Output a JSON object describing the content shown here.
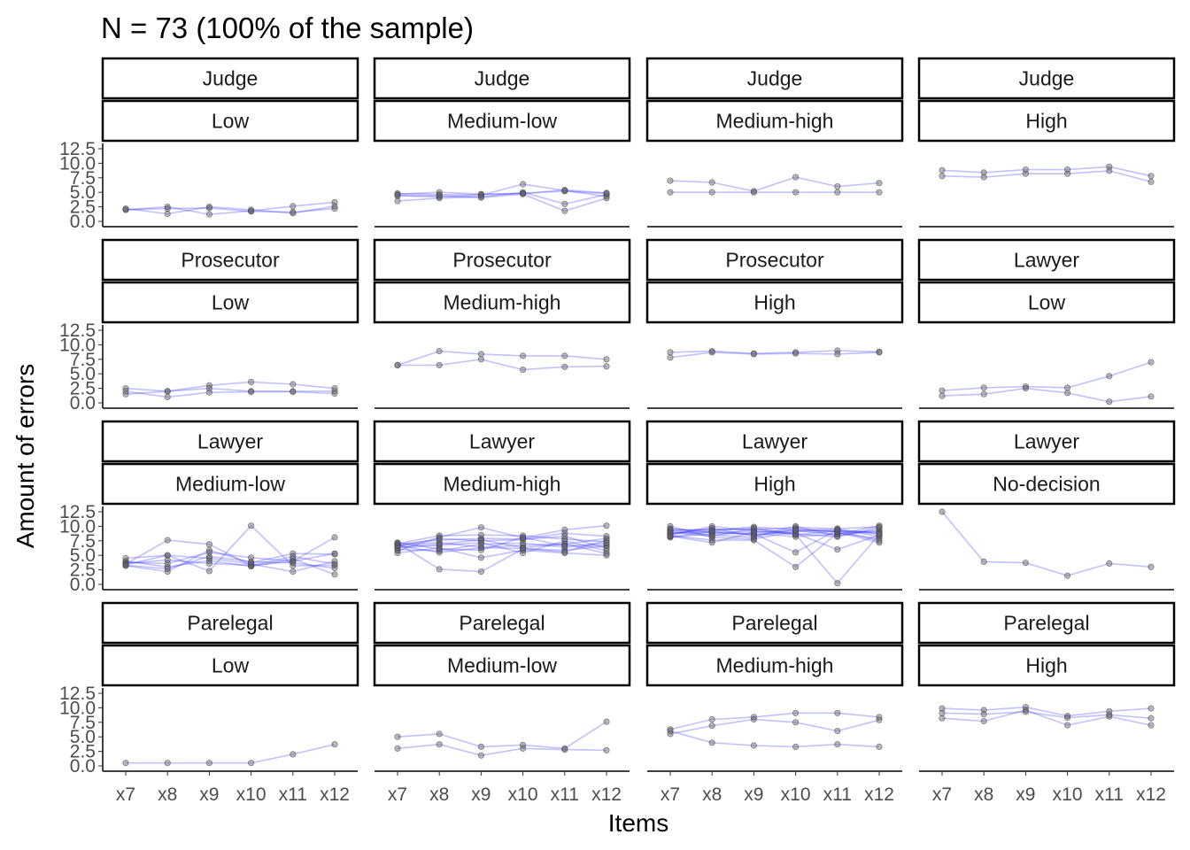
{
  "chart_data": {
    "type": "line",
    "title": "N = 73 (100% of the sample)",
    "xlabel": "Items",
    "ylabel": "Amount of errors",
    "x": [
      "x7",
      "x8",
      "x9",
      "x10",
      "x11",
      "x12"
    ],
    "ylim": [
      0,
      12.5
    ],
    "yticks": [
      "0.0",
      "2.5",
      "5.0",
      "7.5",
      "10.0",
      "12.5"
    ],
    "line_color": "#3333ff",
    "point_color": "#666666",
    "facet_rows": 4,
    "facet_cols": 4,
    "panels": [
      {
        "group": "Judge",
        "level": "Low",
        "series": [
          {
            "values": [
              2,
              2.2,
              2.3,
              1.7,
              1.6,
              2.2
            ]
          },
          {
            "values": [
              2,
              2.5,
              1.2,
              1.8,
              2.6,
              3.3
            ]
          },
          {
            "values": [
              2.2,
              1.3,
              2.5,
              2,
              1.4,
              2.6
            ]
          }
        ]
      },
      {
        "group": "Judge",
        "level": "Medium-low",
        "series": [
          {
            "values": [
              4.7,
              5,
              4.7,
              4.8,
              5.2,
              4.8
            ]
          },
          {
            "values": [
              4.4,
              4.2,
              4.5,
              6.4,
              5.3,
              4.3
            ]
          },
          {
            "values": [
              3.5,
              4,
              4.2,
              5,
              3,
              4.6
            ]
          },
          {
            "values": [
              4.8,
              4.6,
              4.6,
              4.8,
              5.4,
              4.9
            ]
          },
          {
            "values": [
              4.5,
              4.4,
              4.1,
              4.7,
              1.8,
              4
            ]
          }
        ]
      },
      {
        "group": "Judge",
        "level": "Medium-high",
        "series": [
          {
            "values": [
              7,
              6.7,
              5.2,
              7.6,
              6,
              6.6
            ]
          },
          {
            "values": [
              5,
              5,
              5,
              5,
              5,
              5
            ]
          }
        ]
      },
      {
        "group": "Judge",
        "level": "High",
        "series": [
          {
            "values": [
              8.8,
              8.4,
              8.9,
              8.9,
              9.4,
              7.8
            ]
          },
          {
            "values": [
              7.8,
              7.6,
              8.2,
              8.2,
              8.7,
              6.8
            ]
          }
        ]
      },
      {
        "group": "Prosecutor",
        "level": "Low",
        "series": [
          {
            "values": [
              2.5,
              2,
              3,
              3.6,
              3.2,
              2.5
            ]
          },
          {
            "values": [
              1.5,
              2,
              2.5,
              2,
              2,
              2
            ]
          },
          {
            "values": [
              2,
              1,
              1.8,
              1.9,
              1.9,
              1.6
            ]
          }
        ]
      },
      {
        "group": "Prosecutor",
        "level": "Medium-high",
        "series": [
          {
            "values": [
              6.5,
              8.9,
              8.4,
              8.1,
              8.1,
              7.5
            ]
          },
          {
            "values": [
              6.5,
              6.5,
              7.5,
              5.7,
              6.2,
              6.3
            ]
          }
        ]
      },
      {
        "group": "Prosecutor",
        "level": "High",
        "series": [
          {
            "values": [
              8.7,
              8.9,
              8.5,
              8.7,
              9,
              8.8
            ]
          },
          {
            "values": [
              7.8,
              8.7,
              8.4,
              8.5,
              8.4,
              8.7
            ]
          }
        ]
      },
      {
        "group": "Lawyer",
        "level": "Low",
        "series": [
          {
            "values": [
              2.1,
              2.6,
              2.8,
              2.6,
              4.6,
              7
            ]
          },
          {
            "values": [
              1.2,
              1.5,
              2.5,
              1.7,
              0.2,
              1.1
            ]
          }
        ]
      },
      {
        "group": "Lawyer",
        "level": "Medium-low",
        "series": [
          {
            "values": [
              3.5,
              7.6,
              6.9,
              3.2,
              4,
              8.1
            ]
          },
          {
            "values": [
              4.5,
              5,
              2.3,
              10.1,
              3.2,
              3.3
            ]
          },
          {
            "values": [
              3.2,
              2.2,
              5.9,
              3.7,
              5.3,
              5.2
            ]
          },
          {
            "values": [
              4,
              3,
              4.1,
              3.1,
              4.4,
              1.7
            ]
          },
          {
            "values": [
              3.8,
              3.6,
              5.5,
              4.6,
              4,
              5.3
            ]
          },
          {
            "values": [
              3.6,
              4.2,
              3.6,
              3.3,
              4.8,
              3.5
            ]
          },
          {
            "values": [
              3.4,
              5,
              4.5,
              3.5,
              2.2,
              4
            ]
          },
          {
            "values": [
              3.3,
              2.7,
              4.8,
              3.9,
              3.7,
              2.8
            ]
          }
        ]
      },
      {
        "group": "Lawyer",
        "level": "Medium-high",
        "series": [
          {
            "values": [
              6.5,
              6.9,
              7.7,
              6.3,
              6.9,
              7.9
            ]
          },
          {
            "values": [
              7.1,
              2.6,
              2.2,
              6.1,
              5.9,
              6.6
            ]
          },
          {
            "values": [
              5.8,
              8.1,
              9.8,
              8,
              9.4,
              10.1
            ]
          },
          {
            "values": [
              6.8,
              7.2,
              6.4,
              6.7,
              7,
              5.3
            ]
          },
          {
            "values": [
              5.4,
              6.3,
              4.6,
              5.9,
              5.4,
              5
            ]
          },
          {
            "values": [
              6.9,
              7.6,
              7.9,
              7.8,
              8.8,
              8.3
            ]
          },
          {
            "values": [
              6,
              5.8,
              6.9,
              7.1,
              6.4,
              6.8
            ]
          },
          {
            "values": [
              7,
              8.4,
              8.5,
              8.4,
              7.8,
              7.3
            ]
          },
          {
            "values": [
              6.3,
              6.7,
              7.2,
              5.4,
              7.5,
              5.8
            ]
          },
          {
            "values": [
              6.7,
              5.5,
              6.3,
              6.2,
              5.6,
              7.6
            ]
          },
          {
            "values": [
              6.6,
              7.9,
              7.5,
              7.7,
              8.3,
              6.2
            ]
          },
          {
            "values": [
              7.2,
              6.1,
              5.9,
              8.1,
              6.6,
              7.1
            ]
          }
        ]
      },
      {
        "group": "Lawyer",
        "level": "High",
        "series": [
          {
            "values": [
              9.2,
              9.5,
              9.4,
              9.8,
              9.6,
              9.9
            ]
          },
          {
            "values": [
              8.4,
              7.6,
              7.6,
              3,
              8.8,
              7.9
            ]
          },
          {
            "values": [
              8.8,
              9,
              9.1,
              8.6,
              0.2,
              8.6
            ]
          },
          {
            "values": [
              10,
              8.1,
              7.8,
              9.1,
              9.3,
              7.5
            ]
          },
          {
            "values": [
              8.1,
              8.7,
              8.8,
              8.2,
              8.7,
              9.2
            ]
          },
          {
            "values": [
              9.5,
              9.3,
              9.9,
              9.4,
              9.1,
              8.8
            ]
          },
          {
            "values": [
              8.6,
              9.7,
              8.3,
              10,
              8.3,
              9.5
            ]
          },
          {
            "values": [
              9,
              8.3,
              9.6,
              8.5,
              9.2,
              9
            ]
          },
          {
            "values": [
              8.2,
              9.1,
              8.5,
              9.2,
              8.6,
              10.1
            ]
          },
          {
            "values": [
              9.6,
              8.9,
              8.7,
              5.5,
              9.4,
              8.3
            ]
          },
          {
            "values": [
              8.5,
              10,
              9.2,
              8.8,
              6,
              8.5
            ]
          },
          {
            "values": [
              9.3,
              8.5,
              8.1,
              9.6,
              9,
              7.2
            ]
          },
          {
            "values": [
              8.9,
              9.2,
              9.7,
              8.7,
              8.2,
              9.8
            ]
          },
          {
            "values": [
              8.3,
              7.2,
              9,
              9.3,
              9.5,
              8.7
            ]
          }
        ]
      },
      {
        "group": "Lawyer",
        "level": "No-decision",
        "series": [
          {
            "values": [
              12.5,
              3.9,
              3.7,
              1.5,
              3.6,
              3
            ]
          }
        ]
      },
      {
        "group": "Parelegal",
        "level": "Low",
        "series": [
          {
            "values": [
              0.5,
              0.5,
              0.5,
              0.5,
              2,
              3.7
            ]
          }
        ]
      },
      {
        "group": "Parelegal",
        "level": "Medium-low",
        "series": [
          {
            "values": [
              5,
              5.5,
              3.3,
              3.6,
              3,
              7.6
            ]
          },
          {
            "values": [
              3,
              3.7,
              1.8,
              3,
              2.8,
              2.7
            ]
          }
        ]
      },
      {
        "group": "Parelegal",
        "level": "Medium-high",
        "series": [
          {
            "values": [
              6.3,
              8,
              8.4,
              9.1,
              9.1,
              8.4
            ]
          },
          {
            "values": [
              5.5,
              6.9,
              8,
              7.5,
              6,
              7.9
            ]
          },
          {
            "values": [
              6,
              4,
              3.5,
              3.3,
              3.7,
              3.3
            ]
          }
        ]
      },
      {
        "group": "Parelegal",
        "level": "High",
        "series": [
          {
            "values": [
              9.9,
              9.6,
              10.1,
              8.6,
              9.4,
              9.9
            ]
          },
          {
            "values": [
              8.2,
              7.7,
              9.6,
              7,
              8.5,
              7
            ]
          },
          {
            "values": [
              9.1,
              8.9,
              9.3,
              8.3,
              8.8,
              8.2
            ]
          }
        ]
      }
    ]
  }
}
